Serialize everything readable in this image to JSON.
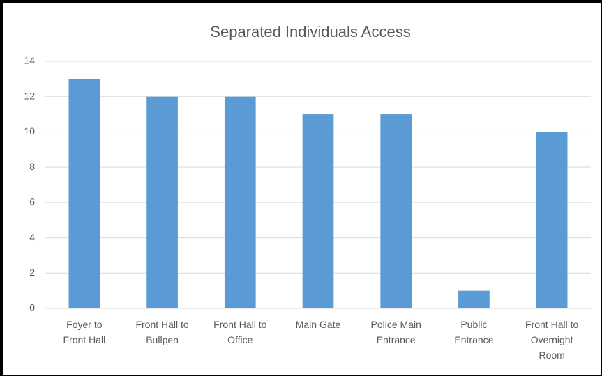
{
  "chart_data": {
    "type": "bar",
    "title": "Separated Individuals Access",
    "categories": [
      "Foyer to Front Hall",
      "Front Hall to Bullpen",
      "Front Hall to Office",
      "Main Gate",
      "Police Main Entrance",
      "Public Entrance",
      "Front Hall to Overnight Room"
    ],
    "values": [
      13,
      12,
      12,
      11,
      11,
      1,
      10
    ],
    "color": "#5b9bd5",
    "ylim": [
      0,
      14
    ],
    "yticks": [
      0,
      2,
      4,
      6,
      8,
      10,
      12,
      14
    ],
    "grid": true
  }
}
